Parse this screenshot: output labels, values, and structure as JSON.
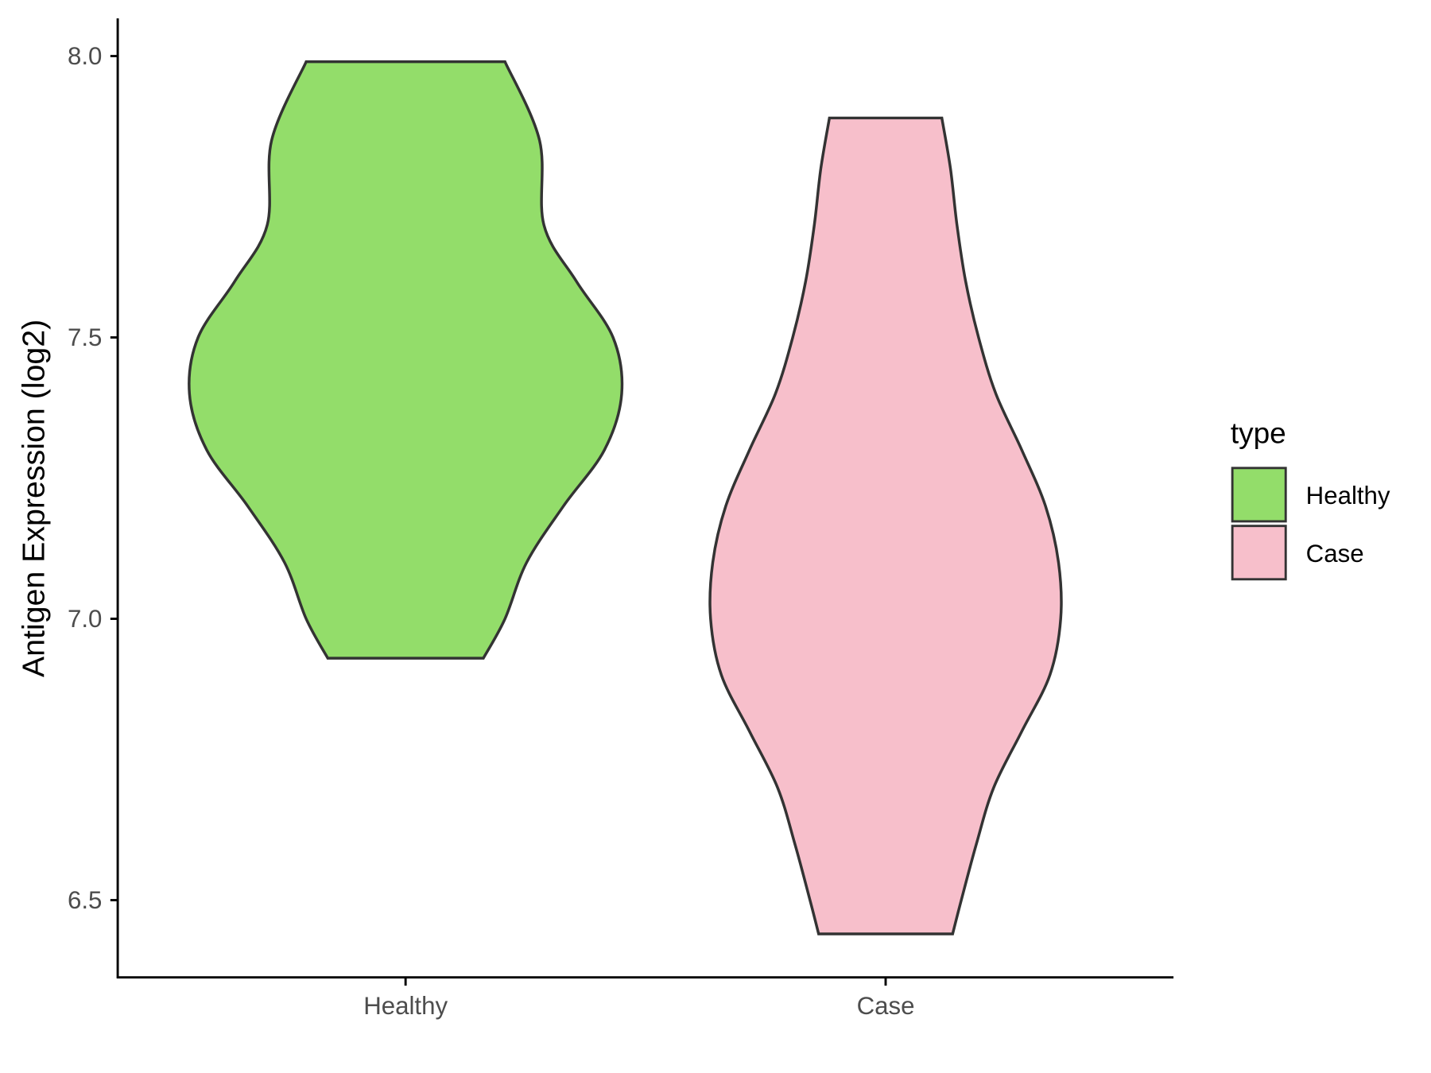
{
  "chart_data": {
    "type": "violin",
    "title": "",
    "xlabel": "",
    "ylabel": "Antigen Expression (log2)",
    "ylim": [
      6.37,
      8.07
    ],
    "yticks": [
      "6.5",
      "7.0",
      "7.5",
      "8.0"
    ],
    "categories": [
      "Healthy",
      "Case"
    ],
    "grid": false,
    "legend": {
      "title": "type",
      "position": "right",
      "entries": [
        "Healthy",
        "Case"
      ]
    },
    "series": [
      {
        "name": "Healthy",
        "color": "#93DD6A",
        "min": 6.93,
        "max": 7.99,
        "density_profile": [
          [
            7.99,
            0.46
          ],
          [
            7.85,
            0.62
          ],
          [
            7.7,
            0.64
          ],
          [
            7.6,
            0.79
          ],
          [
            7.5,
            0.96
          ],
          [
            7.4,
            1.0
          ],
          [
            7.3,
            0.92
          ],
          [
            7.2,
            0.73
          ],
          [
            7.1,
            0.56
          ],
          [
            7.0,
            0.46
          ],
          [
            6.93,
            0.36
          ]
        ]
      },
      {
        "name": "Case",
        "color": "#F7BFCB",
        "min": 6.44,
        "max": 7.89,
        "density_profile": [
          [
            7.89,
            0.26
          ],
          [
            7.8,
            0.3
          ],
          [
            7.7,
            0.33
          ],
          [
            7.6,
            0.37
          ],
          [
            7.5,
            0.43
          ],
          [
            7.4,
            0.51
          ],
          [
            7.3,
            0.63
          ],
          [
            7.2,
            0.74
          ],
          [
            7.1,
            0.8
          ],
          [
            7.0,
            0.81
          ],
          [
            6.9,
            0.76
          ],
          [
            6.8,
            0.63
          ],
          [
            6.7,
            0.5
          ],
          [
            6.6,
            0.42
          ],
          [
            6.5,
            0.35
          ],
          [
            6.44,
            0.31
          ]
        ]
      }
    ]
  }
}
